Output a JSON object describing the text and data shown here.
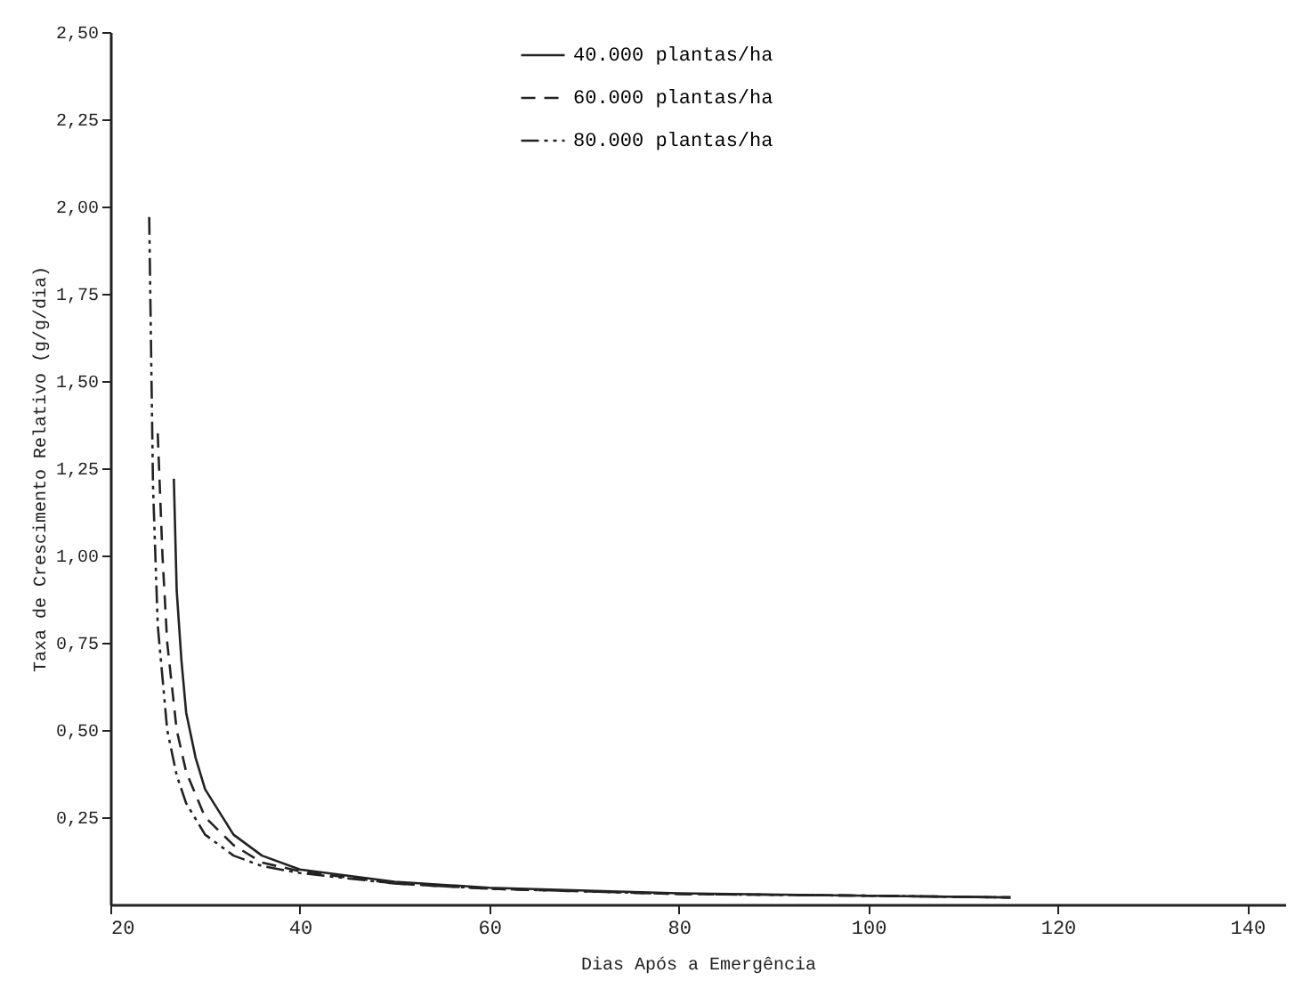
{
  "chart_data": {
    "type": "line",
    "xlabel": "Dias Após a Emergência",
    "ylabel": "Taxa de Crescimento Relativo (g/g/dia)",
    "xlim": [
      20,
      144
    ],
    "xticks": [
      20,
      40,
      60,
      80,
      100,
      120,
      140
    ],
    "ylim": [
      0,
      2.5
    ],
    "yticks": [
      {
        "value": 0.25,
        "label": "0,25"
      },
      {
        "value": 0.5,
        "label": "0,50"
      },
      {
        "value": 0.75,
        "label": "0,75"
      },
      {
        "value": 1,
        "label": "1,00"
      },
      {
        "value": 1.25,
        "label": "1,25"
      },
      {
        "value": 1.5,
        "label": "1,50"
      },
      {
        "value": 1.75,
        "label": "1,75"
      },
      {
        "value": 2,
        "label": "2,00"
      },
      {
        "value": 2.25,
        "label": "2,25"
      },
      {
        "value": 2.5,
        "label": "2,50"
      }
    ],
    "grid": false,
    "legend": "top left",
    "marker": "none",
    "series": [
      {
        "name": "40.000 plantas/ha",
        "color": "#222222",
        "line_style": "solid",
        "x": [
          26.7,
          27,
          27.5,
          28,
          29,
          30,
          33,
          36,
          40,
          50,
          60,
          80,
          100,
          115
        ],
        "values": [
          1.22,
          0.9,
          0.7,
          0.55,
          0.42,
          0.33,
          0.2,
          0.14,
          0.1,
          0.065,
          0.048,
          0.032,
          0.025,
          0.02
        ]
      },
      {
        "name": "60.000 plantas/ha",
        "color": "#222222",
        "line_style": "dashed",
        "x": [
          25,
          25.5,
          26,
          27,
          28,
          30,
          33,
          36,
          40,
          50,
          60,
          80,
          100,
          115
        ],
        "values": [
          1.35,
          1.0,
          0.75,
          0.5,
          0.38,
          0.25,
          0.17,
          0.12,
          0.095,
          0.06,
          0.045,
          0.03,
          0.025,
          0.02
        ]
      },
      {
        "name": "80.000 plantas/ha",
        "color": "#222222",
        "line_style": "dotted",
        "x": [
          24.1,
          24.5,
          25,
          26,
          27,
          28,
          30,
          33,
          36,
          40,
          50,
          60,
          80,
          100,
          115
        ],
        "values": [
          1.97,
          1.2,
          0.8,
          0.5,
          0.37,
          0.29,
          0.2,
          0.14,
          0.11,
          0.09,
          0.06,
          0.045,
          0.03,
          0.025,
          0.02
        ]
      }
    ]
  }
}
